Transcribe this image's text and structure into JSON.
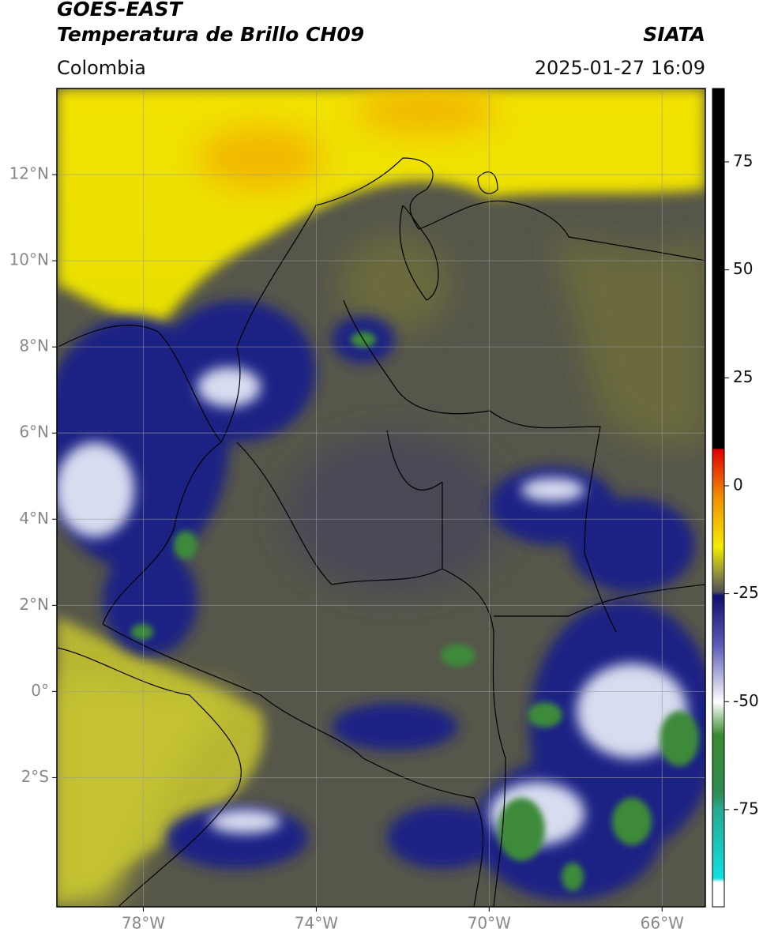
{
  "header": {
    "title": "GOES-EAST",
    "subtitle": "Temperatura de Brillo CH09",
    "source": "SIATA",
    "region": "Colombia",
    "timestamp": "2025-01-27 16:09"
  },
  "map": {
    "lonlim": [
      -80,
      -65
    ],
    "latlim": [
      -5,
      14
    ],
    "lon_ticks": [
      {
        "value": -78,
        "label": "78°W"
      },
      {
        "value": -74,
        "label": "74°W"
      },
      {
        "value": -70,
        "label": "70°W"
      },
      {
        "value": -66,
        "label": "66°W"
      }
    ],
    "lat_ticks": [
      {
        "value": 12,
        "label": "12°N"
      },
      {
        "value": 10,
        "label": "10°N"
      },
      {
        "value": 8,
        "label": "8°N"
      },
      {
        "value": 6,
        "label": "6°N"
      },
      {
        "value": 4,
        "label": "4°N"
      },
      {
        "value": 2,
        "label": "2°N"
      },
      {
        "value": 0,
        "label": "0°"
      },
      {
        "value": -2,
        "label": "2°S"
      }
    ]
  },
  "colorbar": {
    "range": [
      -97.5,
      92
    ],
    "ticks": [
      75,
      50,
      25,
      0,
      -25,
      -50,
      -75
    ]
  }
}
